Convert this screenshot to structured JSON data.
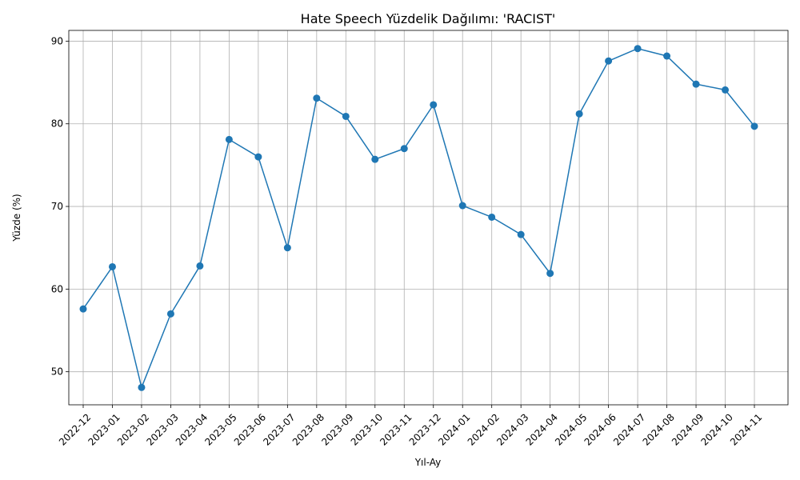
{
  "chart_data": {
    "type": "line",
    "title": "Hate Speech Yüzdelik Dağılımı: 'RACIST'",
    "xlabel": "Yıl-Ay",
    "ylabel": "Yüzde (%)",
    "categories": [
      "2022-12",
      "2023-01",
      "2023-02",
      "2023-03",
      "2023-04",
      "2023-05",
      "2023-06",
      "2023-07",
      "2023-08",
      "2023-09",
      "2023-10",
      "2023-11",
      "2023-12",
      "2024-01",
      "2024-02",
      "2024-03",
      "2024-04",
      "2024-05",
      "2024-06",
      "2024-07",
      "2024-08",
      "2024-09",
      "2024-10",
      "2024-11"
    ],
    "series": [
      {
        "values": [
          57.6,
          62.7,
          48.1,
          57.0,
          62.8,
          78.1,
          76.0,
          65.0,
          83.1,
          80.9,
          75.7,
          77.0,
          82.3,
          70.1,
          68.7,
          66.6,
          61.9,
          81.2,
          87.6,
          89.1,
          88.2,
          84.8,
          84.1,
          79.7
        ],
        "color": "#1f77b4"
      }
    ],
    "ylim": [
      46,
      91.3
    ],
    "yticks": [
      50,
      60,
      70,
      80,
      90
    ],
    "grid": true,
    "marker": "circle"
  }
}
